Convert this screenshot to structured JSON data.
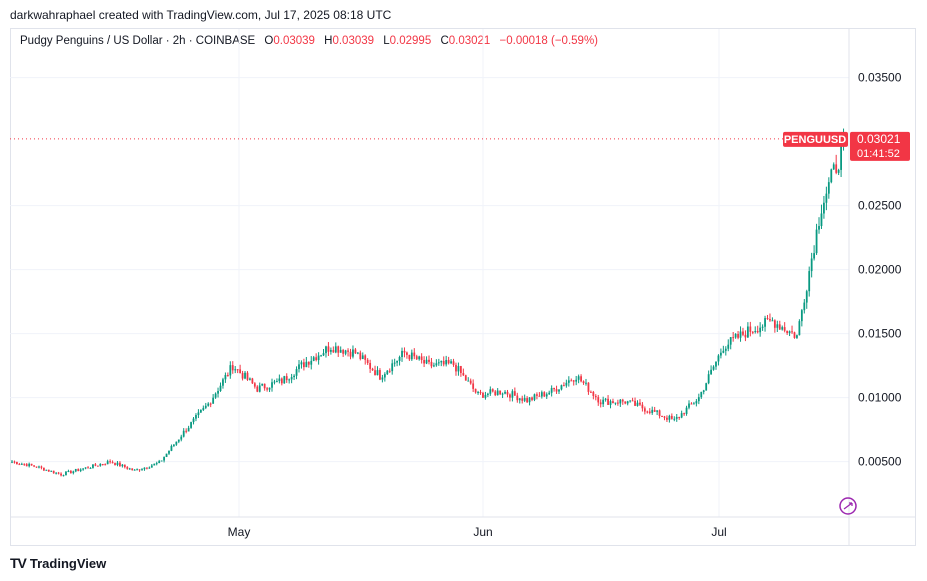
{
  "attribution": "darkwahraphael created with TradingView.com, Jul 17, 2025 08:18 UTC",
  "legend": {
    "symbol": "Pudgy Penguins / US Dollar · 2h · COINBASE",
    "open_label": "O",
    "open": "0.03039",
    "high_label": "H",
    "high": "0.03039",
    "low_label": "L",
    "low": "0.02995",
    "close_label": "C",
    "close": "0.03021",
    "change": "−0.00018 (−0.59%)"
  },
  "brand": {
    "icon": "tradingview-logo-icon",
    "name": "TradingView"
  },
  "colors": {
    "up": "#089981",
    "down": "#f23645",
    "grid": "#f0f3fa",
    "price_line": "#f23645",
    "axis_text": "#131722"
  },
  "chart_data": {
    "type": "candlestick",
    "title": "Pudgy Penguins / US Dollar · 2h · COINBASE",
    "ticker_label": "PENGUUSD",
    "last_price": "0.03021",
    "countdown": "01:41:52",
    "ylim": [
      0.0,
      0.0367
    ],
    "y_ticks": [
      "0.03500",
      "0.02500",
      "0.02000",
      "0.01500",
      "0.01000",
      "0.00500"
    ],
    "x_ticks": [
      "May",
      "Jun",
      "Jul"
    ],
    "grid": true,
    "scale": "linear",
    "x": [
      "Apr 6",
      "Apr 9",
      "Apr 12",
      "Apr 15",
      "Apr 18",
      "Apr 21",
      "Apr 24",
      "Apr 27",
      "Apr 30",
      "May 3",
      "May 6",
      "May 9",
      "May 12",
      "May 15",
      "May 18",
      "May 21",
      "May 24",
      "May 27",
      "May 30",
      "Jun 2",
      "Jun 5",
      "Jun 8",
      "Jun 11",
      "Jun 14",
      "Jun 17",
      "Jun 20",
      "Jun 23",
      "Jun 26",
      "Jun 29",
      "Jul 2",
      "Jul 5",
      "Jul 8",
      "Jul 11",
      "Jul 14",
      "Jul 17"
    ],
    "close": [
      0.005,
      0.0046,
      0.004,
      0.0045,
      0.005,
      0.0043,
      0.0049,
      0.0073,
      0.0095,
      0.0125,
      0.0107,
      0.0113,
      0.0128,
      0.014,
      0.0135,
      0.0117,
      0.0135,
      0.0125,
      0.0126,
      0.0102,
      0.0105,
      0.0098,
      0.0105,
      0.0117,
      0.0097,
      0.0097,
      0.009,
      0.0082,
      0.01,
      0.014,
      0.0152,
      0.016,
      0.0148,
      0.025,
      0.0302
    ]
  }
}
